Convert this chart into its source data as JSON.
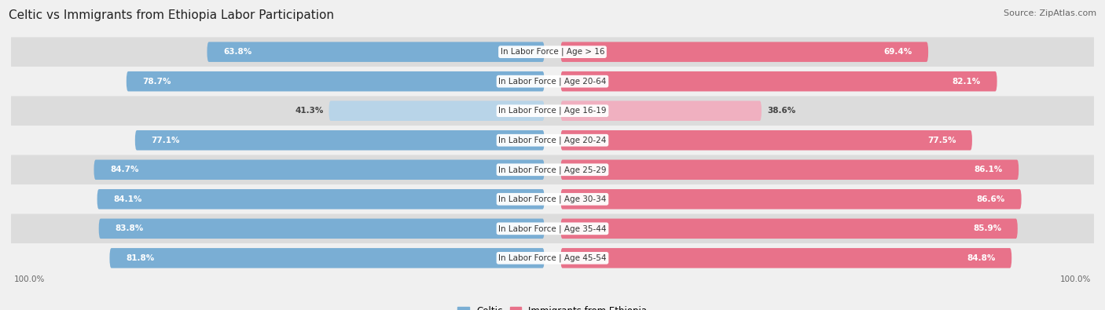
{
  "title": "Celtic vs Immigrants from Ethiopia Labor Participation",
  "source": "Source: ZipAtlas.com",
  "categories": [
    "In Labor Force | Age > 16",
    "In Labor Force | Age 20-64",
    "In Labor Force | Age 16-19",
    "In Labor Force | Age 20-24",
    "In Labor Force | Age 25-29",
    "In Labor Force | Age 30-34",
    "In Labor Force | Age 35-44",
    "In Labor Force | Age 45-54"
  ],
  "celtic_values": [
    63.8,
    78.7,
    41.3,
    77.1,
    84.7,
    84.1,
    83.8,
    81.8
  ],
  "ethiopia_values": [
    69.4,
    82.1,
    38.6,
    77.5,
    86.1,
    86.6,
    85.9,
    84.8
  ],
  "celtic_color": "#7aaed4",
  "celtic_color_light": "#b8d4e8",
  "ethiopia_color": "#e8728a",
  "ethiopia_color_light": "#f0b0c0",
  "background_color": "#f0f0f0",
  "row_color_dark": "#dcdcdc",
  "row_color_light": "#f0f0f0",
  "title_fontsize": 11,
  "source_fontsize": 8,
  "label_fontsize": 7.5,
  "value_fontsize": 7.5,
  "legend_fontsize": 8.5,
  "axis_label_fontsize": 7.5,
  "x_max": 100,
  "bar_height": 0.68,
  "low_threshold": 55
}
